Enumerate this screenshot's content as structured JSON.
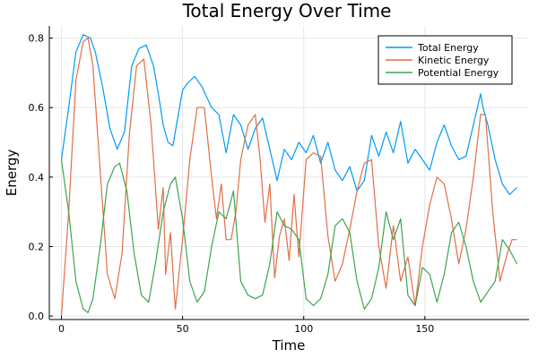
{
  "chart_data": {
    "type": "line",
    "title": "Total Energy Over Time",
    "xlabel": "Time",
    "ylabel": "Energy",
    "xlim": [
      -5,
      193
    ],
    "ylim": [
      -0.01,
      0.835
    ],
    "xticks": [
      0,
      50,
      100,
      150
    ],
    "yticks": [
      0.0,
      0.2,
      0.4,
      0.6,
      0.8
    ],
    "grid": true,
    "legend_position": "top-right",
    "series": [
      {
        "name": "Total Energy",
        "color": "#009af9",
        "x": [
          0,
          3,
          6,
          9,
          12,
          14,
          17,
          20,
          23,
          26,
          29,
          32,
          35,
          38,
          40,
          42,
          44,
          46,
          48,
          50,
          52,
          55,
          58,
          62,
          65,
          68,
          71,
          74,
          77,
          80,
          83,
          86,
          89,
          92,
          95,
          98,
          101,
          104,
          107,
          110,
          113,
          116,
          119,
          122,
          125,
          128,
          131,
          134,
          137,
          140,
          143,
          146,
          149,
          152,
          155,
          158,
          161,
          164,
          167,
          170,
          173,
          174,
          176,
          179,
          182,
          185,
          188
        ],
        "y": [
          0.45,
          0.6,
          0.76,
          0.81,
          0.8,
          0.76,
          0.66,
          0.54,
          0.48,
          0.53,
          0.72,
          0.77,
          0.78,
          0.72,
          0.64,
          0.55,
          0.5,
          0.49,
          0.57,
          0.65,
          0.67,
          0.69,
          0.66,
          0.6,
          0.58,
          0.47,
          0.58,
          0.55,
          0.48,
          0.54,
          0.57,
          0.48,
          0.39,
          0.48,
          0.45,
          0.5,
          0.47,
          0.52,
          0.44,
          0.5,
          0.42,
          0.39,
          0.43,
          0.36,
          0.39,
          0.52,
          0.46,
          0.53,
          0.47,
          0.56,
          0.44,
          0.48,
          0.45,
          0.42,
          0.5,
          0.55,
          0.49,
          0.45,
          0.46,
          0.55,
          0.64,
          0.6,
          0.55,
          0.45,
          0.38,
          0.35,
          0.37
        ]
      },
      {
        "name": "Kinetic Energy",
        "color": "#e26f46",
        "x": [
          0,
          3,
          6,
          9,
          11,
          13,
          16,
          19,
          22,
          25,
          28,
          31,
          34,
          37,
          40,
          42,
          43,
          45,
          47,
          50,
          53,
          56,
          59,
          62,
          64,
          66,
          68,
          70,
          72,
          74,
          77,
          80,
          82,
          84,
          86,
          88,
          90,
          92,
          94,
          96,
          98,
          101,
          104,
          107,
          110,
          113,
          116,
          119,
          122,
          125,
          128,
          131,
          134,
          137,
          140,
          143,
          146,
          149,
          152,
          155,
          158,
          161,
          164,
          167,
          170,
          173,
          175,
          178,
          181,
          184,
          186,
          188
        ],
        "y": [
          0.0,
          0.3,
          0.68,
          0.79,
          0.8,
          0.72,
          0.42,
          0.12,
          0.05,
          0.18,
          0.52,
          0.72,
          0.74,
          0.55,
          0.25,
          0.37,
          0.12,
          0.24,
          0.02,
          0.22,
          0.45,
          0.6,
          0.6,
          0.4,
          0.28,
          0.38,
          0.22,
          0.22,
          0.3,
          0.45,
          0.55,
          0.58,
          0.45,
          0.27,
          0.38,
          0.11,
          0.23,
          0.28,
          0.16,
          0.35,
          0.17,
          0.45,
          0.47,
          0.46,
          0.23,
          0.1,
          0.15,
          0.25,
          0.36,
          0.44,
          0.45,
          0.2,
          0.08,
          0.26,
          0.1,
          0.17,
          0.03,
          0.2,
          0.32,
          0.4,
          0.38,
          0.28,
          0.15,
          0.25,
          0.4,
          0.58,
          0.58,
          0.3,
          0.1,
          0.18,
          0.22,
          0.22
        ]
      },
      {
        "name": "Potential Energy",
        "color": "#3ea44e",
        "x": [
          0,
          3,
          6,
          9,
          11,
          13,
          16,
          19,
          22,
          24,
          27,
          30,
          33,
          36,
          39,
          42,
          45,
          47,
          50,
          53,
          56,
          59,
          62,
          65,
          68,
          71,
          74,
          77,
          80,
          83,
          86,
          89,
          92,
          95,
          98,
          101,
          104,
          107,
          110,
          113,
          116,
          119,
          122,
          125,
          128,
          131,
          134,
          137,
          140,
          143,
          146,
          149,
          152,
          155,
          158,
          161,
          164,
          167,
          170,
          173,
          176,
          179,
          182,
          185,
          188
        ],
        "y": [
          0.45,
          0.3,
          0.1,
          0.02,
          0.01,
          0.05,
          0.2,
          0.38,
          0.43,
          0.44,
          0.36,
          0.18,
          0.06,
          0.04,
          0.16,
          0.3,
          0.38,
          0.4,
          0.28,
          0.1,
          0.04,
          0.07,
          0.2,
          0.3,
          0.28,
          0.36,
          0.1,
          0.06,
          0.05,
          0.06,
          0.15,
          0.3,
          0.26,
          0.25,
          0.22,
          0.05,
          0.03,
          0.05,
          0.12,
          0.26,
          0.28,
          0.24,
          0.1,
          0.02,
          0.05,
          0.14,
          0.3,
          0.22,
          0.28,
          0.06,
          0.03,
          0.14,
          0.12,
          0.04,
          0.12,
          0.24,
          0.27,
          0.2,
          0.1,
          0.04,
          0.07,
          0.1,
          0.22,
          0.19,
          0.15
        ]
      }
    ]
  }
}
